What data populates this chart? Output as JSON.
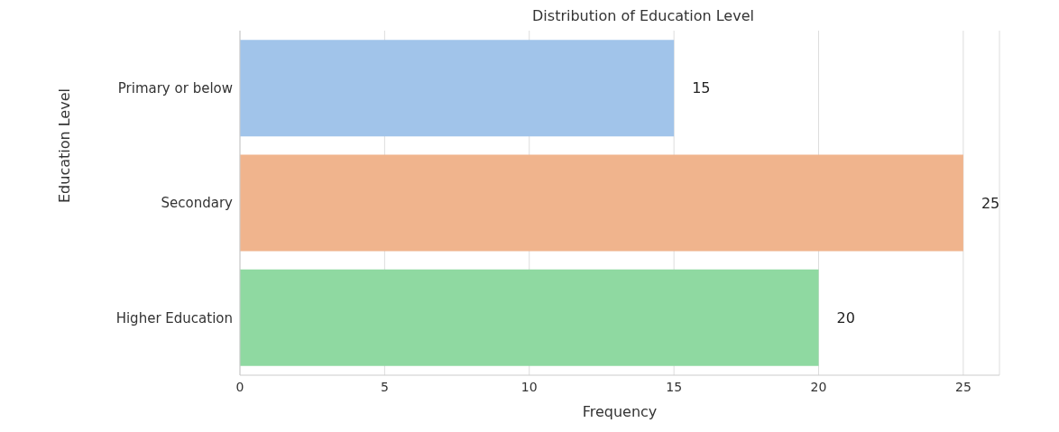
{
  "chart_data": {
    "type": "bar",
    "orientation": "horizontal",
    "title": "Distribution of Education Level",
    "xlabel": "Frequency",
    "ylabel": "Education Level",
    "categories": [
      "Primary or below",
      "Secondary",
      "Higher Education"
    ],
    "values": [
      15,
      25,
      20
    ],
    "colors": [
      "#a1c4ea",
      "#f0b48d",
      "#8fd9a1"
    ],
    "xlim": [
      0,
      26.25
    ],
    "xticks": [
      0,
      5,
      10,
      15,
      20,
      25
    ],
    "grid": "x",
    "data_labels": true
  }
}
